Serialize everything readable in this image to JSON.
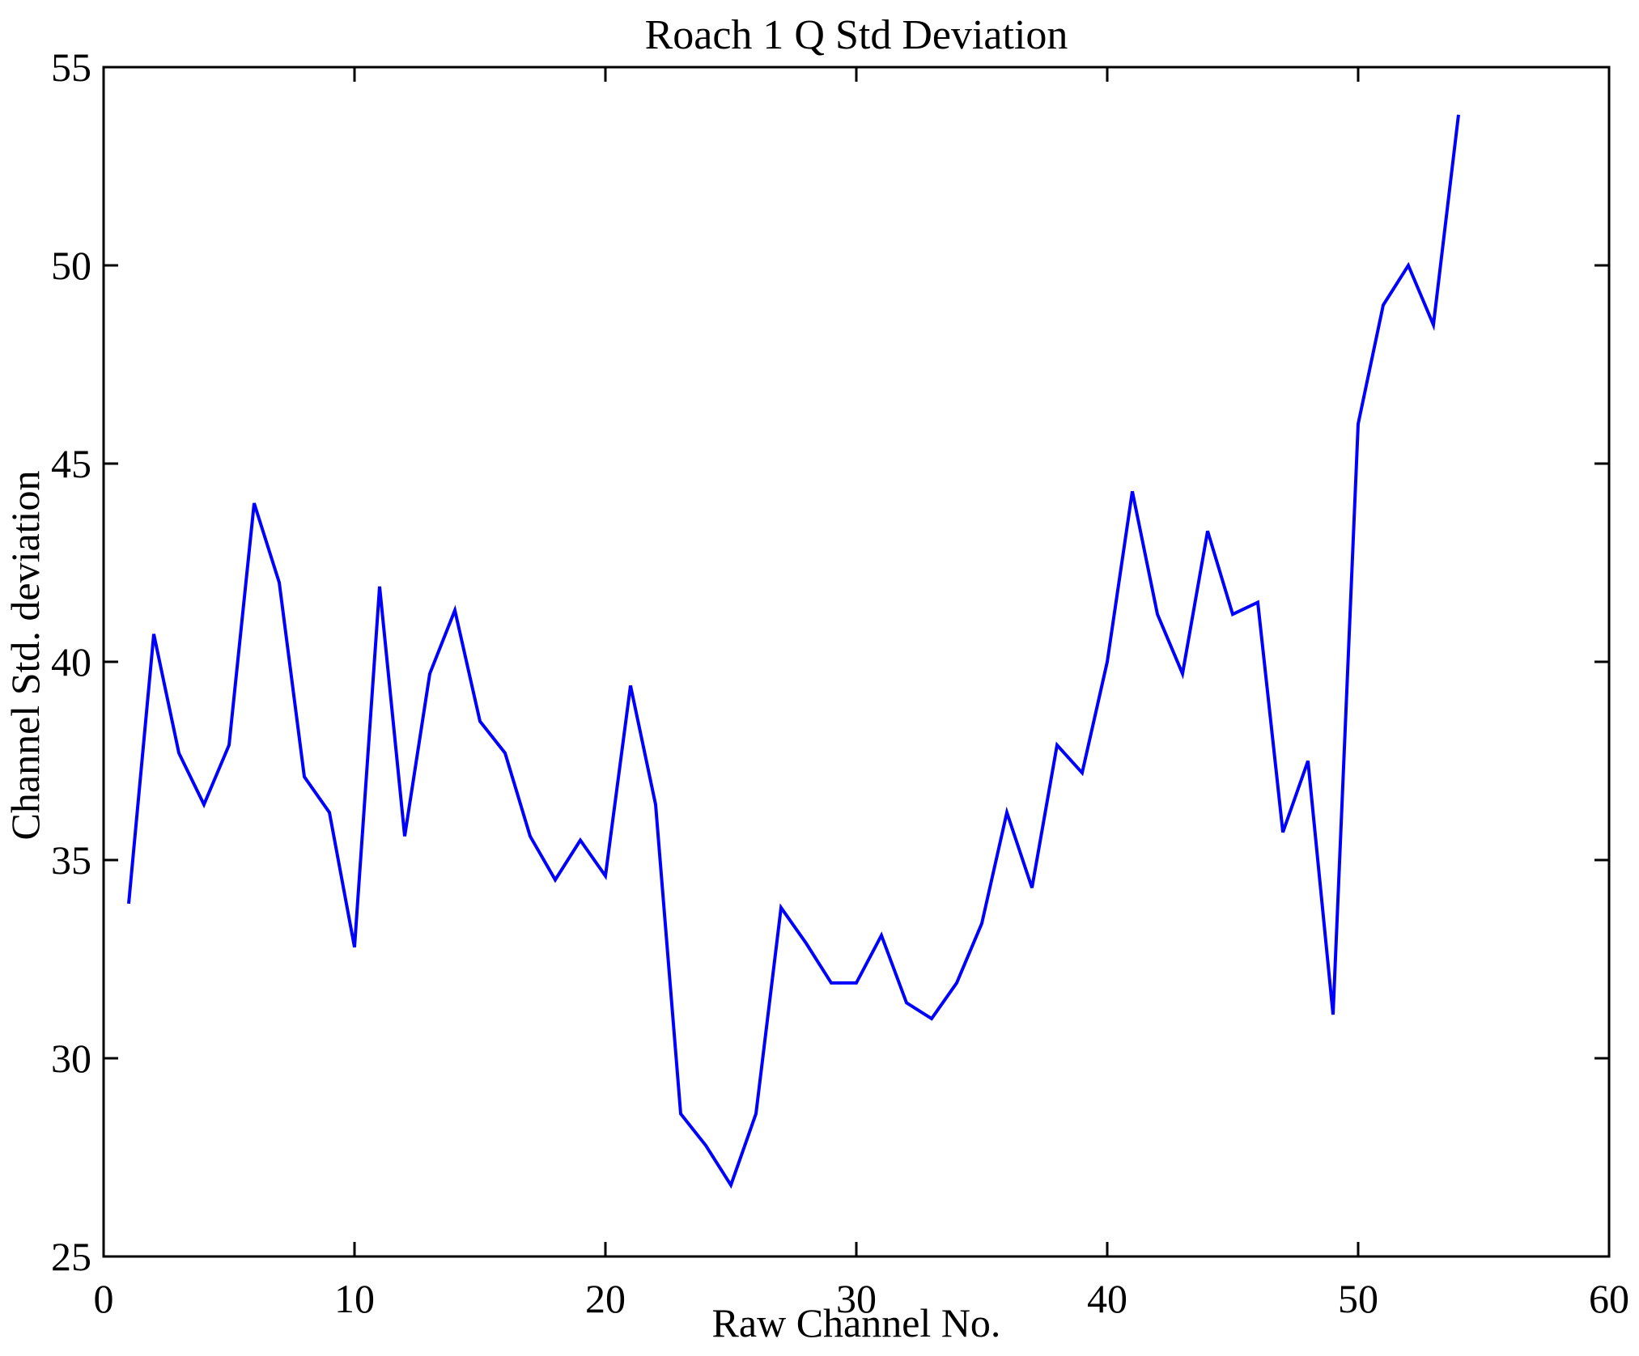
{
  "figure": {
    "title": "Roach 1 Q Std Deviation",
    "xlabel": "Raw Channel No.",
    "ylabel": "Channel Std. deviation"
  },
  "chart_data": {
    "type": "line",
    "title": "Roach 1 Q Std Deviation",
    "xlabel": "Raw Channel No.",
    "ylabel": "Channel Std. deviation",
    "xlim": [
      0,
      60
    ],
    "ylim": [
      25,
      55
    ],
    "xticks": [
      "0",
      "10",
      "20",
      "30",
      "40",
      "50",
      "60"
    ],
    "xtick_values": [
      0,
      10,
      20,
      30,
      40,
      50,
      60
    ],
    "yticks": [
      "25",
      "30",
      "35",
      "40",
      "45",
      "50",
      "55"
    ],
    "ytick_values": [
      25,
      30,
      35,
      40,
      45,
      50,
      55
    ],
    "grid": false,
    "legend_position": "none",
    "line_color": "#0000FF",
    "axis_color": "#000000",
    "background_color": "#FFFFFF",
    "series": [
      {
        "name": "Channel Std. deviation",
        "x": [
          1,
          2,
          3,
          4,
          5,
          6,
          7,
          8,
          9,
          10,
          11,
          12,
          13,
          14,
          15,
          16,
          17,
          18,
          19,
          20,
          21,
          22,
          23,
          24,
          25,
          26,
          27,
          28,
          29,
          30,
          31,
          32,
          33,
          34,
          35,
          36,
          37,
          38,
          39,
          40,
          41,
          42,
          43,
          44,
          45,
          46,
          47,
          48,
          49,
          50,
          51,
          52,
          53,
          54
        ],
        "values": [
          33.9,
          40.7,
          37.7,
          36.4,
          37.9,
          44.0,
          42.0,
          37.1,
          36.2,
          32.8,
          41.9,
          35.6,
          39.7,
          41.3,
          38.5,
          37.7,
          35.6,
          34.5,
          35.5,
          34.6,
          39.4,
          36.4,
          28.6,
          27.8,
          26.8,
          28.6,
          33.8,
          32.9,
          31.9,
          31.9,
          33.1,
          31.4,
          31.0,
          31.9,
          33.4,
          36.2,
          34.3,
          37.9,
          37.2,
          40.0,
          44.3,
          41.2,
          39.7,
          43.3,
          41.2,
          41.5,
          35.7,
          37.5,
          31.1,
          46.0,
          49.0,
          50.0,
          48.5,
          53.8
        ]
      }
    ]
  }
}
